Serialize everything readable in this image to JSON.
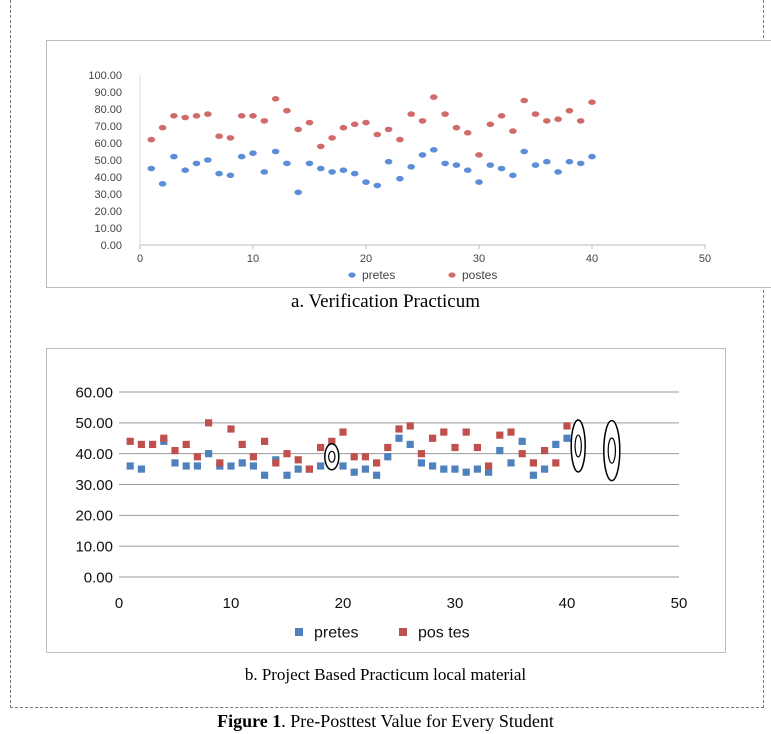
{
  "figure": {
    "label": "Figure 1",
    "text": ". Pre-Posttest Value for Every Student"
  },
  "chart_data": [
    {
      "type": "scatter",
      "caption": "a.  Verification Practicum",
      "xlim": [
        0,
        50
      ],
      "xticks": [
        "0",
        "10",
        "20",
        "30",
        "40",
        "50"
      ],
      "ylim": [
        0,
        100
      ],
      "yticks": [
        "0.00",
        "10.00",
        "20.00",
        "30.00",
        "40.00",
        "50.00",
        "60.00",
        "70.00",
        "80.00",
        "90.00",
        "100.00"
      ],
      "grid": false,
      "legend_position": "bottom",
      "series": [
        {
          "name": "pretes",
          "color": "#5b8ed6",
          "marker": "circle",
          "x": [
            1,
            2,
            3,
            4,
            5,
            6,
            7,
            8,
            9,
            10,
            11,
            12,
            13,
            14,
            15,
            16,
            17,
            18,
            19,
            20,
            21,
            22,
            23,
            24,
            25,
            26,
            27,
            28,
            29,
            30,
            31,
            32,
            33,
            34,
            35,
            36,
            37,
            38,
            39,
            40
          ],
          "y": [
            45,
            36,
            52,
            44,
            48,
            50,
            42,
            41,
            52,
            54,
            43,
            55,
            48,
            31,
            48,
            45,
            43,
            44,
            42,
            37,
            35,
            49,
            39,
            46,
            53,
            56,
            48,
            47,
            44,
            37,
            47,
            45,
            41,
            55,
            47,
            49,
            43,
            49,
            48,
            52
          ]
        },
        {
          "name": "postes",
          "color": "#d06b6b",
          "marker": "circle",
          "x": [
            1,
            2,
            3,
            4,
            5,
            6,
            7,
            8,
            9,
            10,
            11,
            12,
            13,
            14,
            15,
            16,
            17,
            18,
            19,
            20,
            21,
            22,
            23,
            24,
            25,
            26,
            27,
            28,
            29,
            30,
            31,
            32,
            33,
            34,
            35,
            36,
            37,
            38,
            39,
            40
          ],
          "y": [
            62,
            69,
            76,
            75,
            76,
            77,
            64,
            63,
            76,
            76,
            73,
            86,
            79,
            68,
            72,
            58,
            63,
            69,
            71,
            72,
            65,
            68,
            62,
            77,
            73,
            87,
            77,
            69,
            66,
            53,
            71,
            76,
            67,
            85,
            77,
            73,
            74,
            79,
            73,
            84
          ]
        }
      ]
    },
    {
      "type": "scatter",
      "caption": "b. Project Based Practicum local material",
      "xlim": [
        0,
        50
      ],
      "xticks": [
        "0",
        "10",
        "20",
        "30",
        "40",
        "50"
      ],
      "ylim": [
        0,
        60
      ],
      "yticks": [
        "0.00",
        "10.00",
        "20.00",
        "30.00",
        "40.00",
        "50.00",
        "60.00"
      ],
      "grid": true,
      "legend_position": "bottom",
      "series": [
        {
          "name": "pretes",
          "color": "#4f81bd",
          "marker": "square",
          "x": [
            1,
            2,
            4,
            5,
            6,
            7,
            8,
            9,
            10,
            11,
            12,
            13,
            14,
            15,
            16,
            17,
            18,
            19,
            20,
            21,
            22,
            23,
            24,
            25,
            26,
            27,
            28,
            29,
            30,
            31,
            32,
            33,
            34,
            35,
            36,
            37,
            38,
            39,
            40
          ],
          "y": [
            36,
            35,
            44,
            37,
            36,
            36,
            40,
            36,
            36,
            37,
            36,
            33,
            38,
            33,
            35,
            35,
            36,
            38,
            36,
            34,
            35,
            33,
            39,
            45,
            43,
            37,
            36,
            35,
            35,
            34,
            35,
            34,
            41,
            37,
            44,
            33,
            35,
            43,
            45
          ]
        },
        {
          "name": "pos tes",
          "color": "#c0504d",
          "marker": "square",
          "x": [
            1,
            2,
            3,
            4,
            5,
            6,
            7,
            8,
            9,
            10,
            11,
            12,
            13,
            14,
            15,
            16,
            17,
            18,
            19,
            20,
            21,
            22,
            23,
            24,
            25,
            26,
            27,
            28,
            29,
            30,
            31,
            32,
            33,
            34,
            35,
            36,
            37,
            38,
            39,
            40
          ],
          "y": [
            44,
            43,
            43,
            45,
            41,
            43,
            39,
            50,
            37,
            48,
            43,
            39,
            44,
            37,
            40,
            38,
            35,
            42,
            44,
            47,
            39,
            39,
            37,
            42,
            48,
            49,
            40,
            45,
            47,
            42,
            47,
            42,
            36,
            46,
            47,
            40,
            37,
            41,
            37,
            49
          ]
        }
      ]
    }
  ]
}
